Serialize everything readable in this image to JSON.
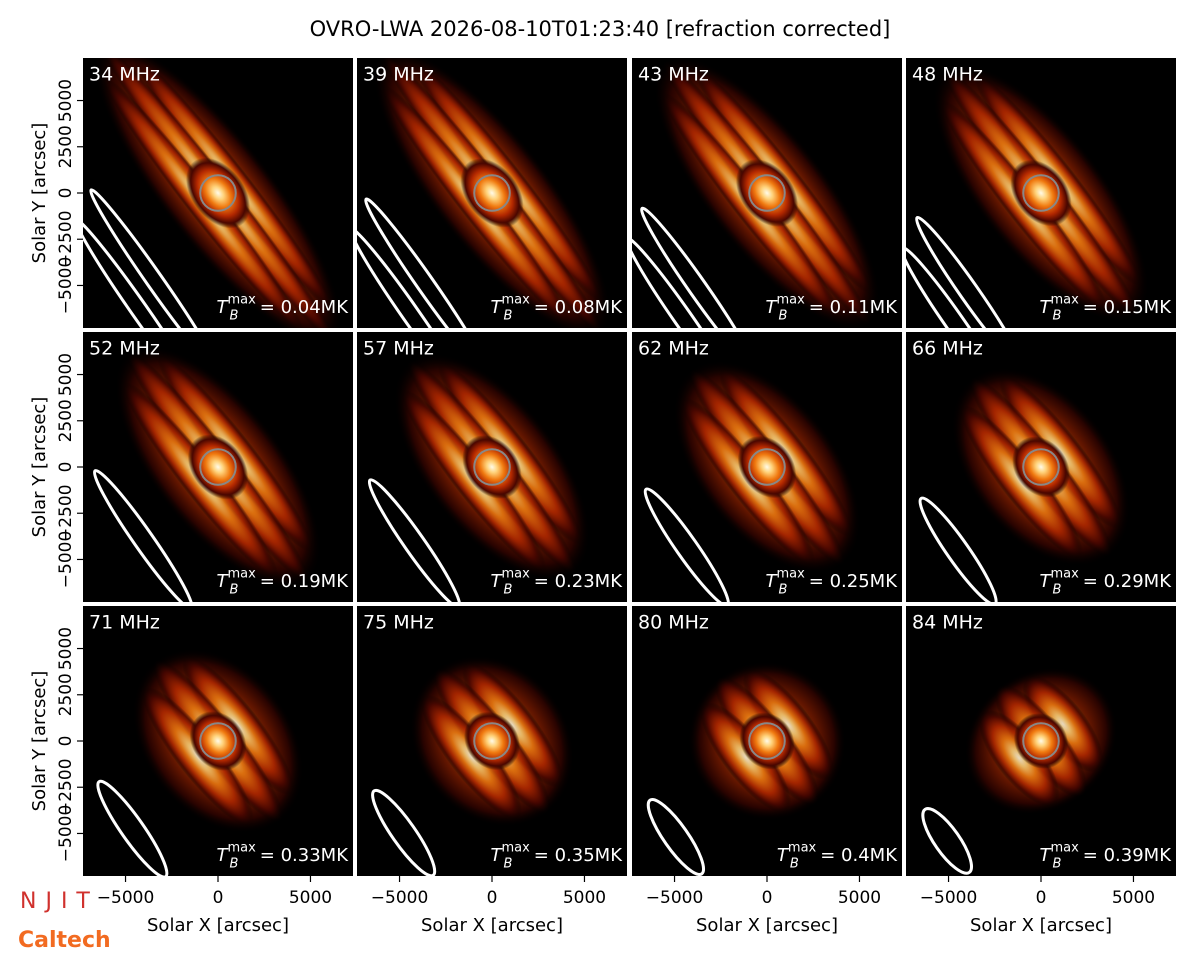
{
  "chart_data": {
    "type": "image",
    "title": "OVRO-LWA 2026-08-10T01:23:40 [refraction corrected]",
    "x_label": "Solar X [arcsec]",
    "y_label": "Solar Y [arcsec]",
    "xlim": [
      -7300,
      7300
    ],
    "ylim": [
      -7300,
      7300
    ],
    "xticks": [
      {
        "value": -5000,
        "label": "−5000"
      },
      0,
      5000
    ],
    "yticks": [
      {
        "value": -5000,
        "label": "−5000"
      },
      {
        "value": -2500,
        "label": "−2500"
      },
      0,
      2500,
      5000
    ],
    "panels": [
      {
        "label": "34 MHz",
        "value_label": "= 0.04MK"
      },
      {
        "label": "39 MHz",
        "value_label": "= 0.08MK"
      },
      {
        "label": "43 MHz",
        "value_label": "= 0.11MK"
      },
      {
        "label": "48 MHz",
        "value_label": "= 0.15MK"
      },
      {
        "label": "52 MHz",
        "value_label": "= 0.19MK"
      },
      {
        "label": "57 MHz",
        "value_label": "= 0.23MK"
      },
      {
        "label": "62 MHz",
        "value_label": "= 0.25MK"
      },
      {
        "label": "66 MHz",
        "value_label": "= 0.29MK"
      },
      {
        "label": "71 MHz",
        "value_label": "= 0.33MK"
      },
      {
        "label": "75 MHz",
        "value_label": "= 0.35MK"
      },
      {
        "label": "80 MHz",
        "value_label": "= 0.4MK"
      },
      {
        "label": "84 MHz",
        "value_label": "= 0.39MK"
      }
    ],
    "symbol": "T",
    "subscript": "B",
    "superscript": "max"
  },
  "logos": {
    "njit": "NJIT",
    "caltech": "Caltech"
  }
}
